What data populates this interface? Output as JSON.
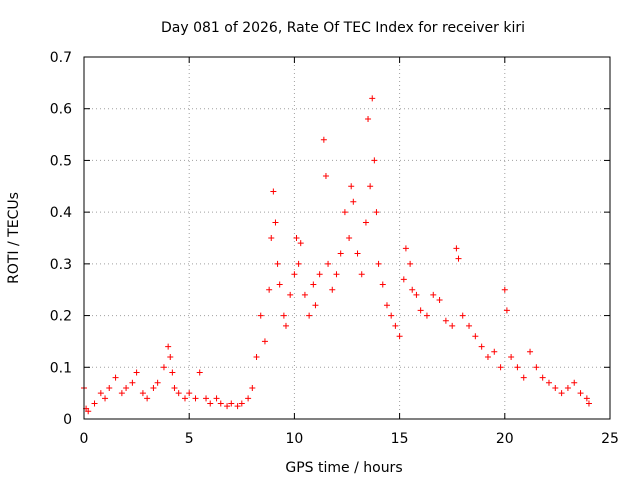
{
  "chart_data": {
    "type": "scatter",
    "title": "Day 081 of 2026, Rate Of TEC Index for receiver kiri",
    "xlabel": "GPS time / hours",
    "ylabel": "ROTI / TECUs",
    "xlim": [
      0,
      25
    ],
    "ylim": [
      0,
      0.7
    ],
    "xticks": [
      0,
      5,
      10,
      15,
      20,
      25
    ],
    "xtick_labels": [
      "0",
      "5",
      "10",
      "15",
      "20",
      "25"
    ],
    "yticks": [
      0,
      0.1,
      0.2,
      0.3,
      0.4,
      0.5,
      0.6,
      0.7
    ],
    "ytick_labels": [
      "0",
      "0.1",
      "0.2",
      "0.3",
      "0.4",
      "0.5",
      "0.6",
      "0.7"
    ],
    "grid": true,
    "marker": "+",
    "color": "#ff0000",
    "series": [
      {
        "name": "ROTI",
        "x": [
          0.0,
          0.1,
          0.2,
          0.5,
          0.8,
          1.0,
          1.2,
          1.5,
          1.8,
          2.0,
          2.3,
          2.5,
          2.8,
          3.0,
          3.3,
          3.5,
          3.8,
          4.0,
          4.1,
          4.2,
          4.3,
          4.5,
          4.8,
          5.0,
          5.3,
          5.5,
          5.8,
          6.0,
          6.3,
          6.5,
          6.8,
          7.0,
          7.3,
          7.5,
          7.8,
          8.0,
          8.2,
          8.4,
          8.6,
          8.8,
          8.9,
          9.0,
          9.1,
          9.2,
          9.3,
          9.5,
          9.6,
          9.8,
          10.0,
          10.1,
          10.2,
          10.3,
          10.5,
          10.7,
          10.9,
          11.0,
          11.2,
          11.4,
          11.5,
          11.6,
          11.8,
          12.0,
          12.2,
          12.4,
          12.6,
          12.7,
          12.8,
          13.0,
          13.2,
          13.4,
          13.5,
          13.6,
          13.7,
          13.8,
          13.9,
          14.0,
          14.2,
          14.4,
          14.6,
          14.8,
          15.0,
          15.2,
          15.3,
          15.5,
          15.6,
          15.8,
          16.0,
          16.3,
          16.6,
          16.9,
          17.2,
          17.5,
          17.7,
          17.8,
          18.0,
          18.3,
          18.6,
          18.9,
          19.2,
          19.5,
          19.8,
          20.0,
          20.1,
          20.3,
          20.6,
          20.9,
          21.2,
          21.5,
          21.8,
          22.1,
          22.4,
          22.7,
          23.0,
          23.3,
          23.6,
          23.9,
          24.0
        ],
        "y": [
          0.06,
          0.02,
          0.015,
          0.03,
          0.05,
          0.04,
          0.06,
          0.08,
          0.05,
          0.06,
          0.07,
          0.09,
          0.05,
          0.04,
          0.06,
          0.07,
          0.1,
          0.14,
          0.12,
          0.09,
          0.06,
          0.05,
          0.04,
          0.05,
          0.04,
          0.09,
          0.04,
          0.03,
          0.04,
          0.03,
          0.025,
          0.03,
          0.025,
          0.03,
          0.04,
          0.06,
          0.12,
          0.2,
          0.15,
          0.25,
          0.35,
          0.44,
          0.38,
          0.3,
          0.26,
          0.2,
          0.18,
          0.24,
          0.28,
          0.35,
          0.3,
          0.34,
          0.24,
          0.2,
          0.26,
          0.22,
          0.28,
          0.54,
          0.47,
          0.3,
          0.25,
          0.28,
          0.32,
          0.4,
          0.35,
          0.45,
          0.42,
          0.32,
          0.28,
          0.38,
          0.58,
          0.45,
          0.62,
          0.5,
          0.4,
          0.3,
          0.26,
          0.22,
          0.2,
          0.18,
          0.16,
          0.27,
          0.33,
          0.3,
          0.25,
          0.24,
          0.21,
          0.2,
          0.24,
          0.23,
          0.19,
          0.18,
          0.33,
          0.31,
          0.2,
          0.18,
          0.16,
          0.14,
          0.12,
          0.13,
          0.1,
          0.25,
          0.21,
          0.12,
          0.1,
          0.08,
          0.13,
          0.1,
          0.08,
          0.07,
          0.06,
          0.05,
          0.06,
          0.07,
          0.05,
          0.04,
          0.03
        ]
      }
    ]
  }
}
